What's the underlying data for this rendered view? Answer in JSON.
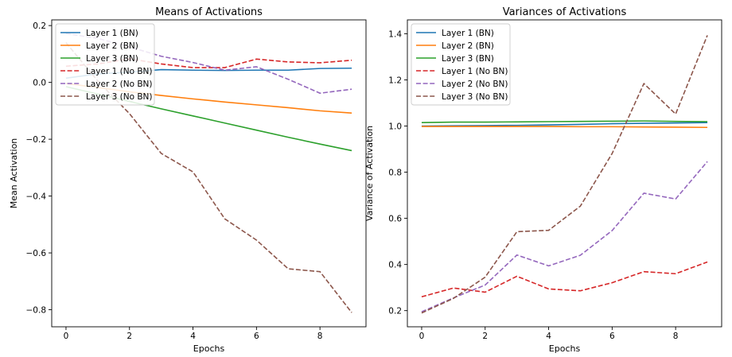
{
  "chart_data": [
    {
      "type": "line",
      "title": "Means of Activations",
      "xlabel": "Epochs",
      "ylabel": "Mean Activation",
      "xlim": [
        -0.45,
        9.45
      ],
      "ylim": [
        -0.86,
        0.22
      ],
      "xticks": [
        0,
        2,
        4,
        6,
        8
      ],
      "yticks": [
        -0.8,
        -0.6,
        -0.4,
        -0.2,
        0.0,
        0.2
      ],
      "ytick_labels": [
        "−0.8",
        "−0.6",
        "−0.4",
        "−0.2",
        "0.0",
        "0.2"
      ],
      "grid": false,
      "legend_position": "lower-left",
      "x": [
        0,
        1,
        2,
        3,
        4,
        5,
        6,
        7,
        8,
        9
      ],
      "series": [
        {
          "name": "Layer 1 (BN)",
          "color": "#1f77b4",
          "dashed": false,
          "values": [
            0.015,
            0.03,
            0.036,
            0.045,
            0.043,
            0.042,
            0.043,
            0.043,
            0.049,
            0.05
          ]
        },
        {
          "name": "Layer 2 (BN)",
          "color": "#ff7f0e",
          "dashed": false,
          "values": [
            -0.004,
            -0.018,
            -0.033,
            -0.046,
            -0.058,
            -0.069,
            -0.079,
            -0.089,
            -0.1,
            -0.108
          ]
        },
        {
          "name": "Layer 3 (BN)",
          "color": "#2ca02c",
          "dashed": false,
          "values": [
            -0.015,
            -0.041,
            -0.067,
            -0.093,
            -0.118,
            -0.143,
            -0.168,
            -0.193,
            -0.217,
            -0.24
          ]
        },
        {
          "name": "Layer 1 (No BN)",
          "color": "#d62728",
          "dashed": true,
          "values": [
            0.057,
            0.065,
            0.083,
            0.065,
            0.052,
            0.052,
            0.082,
            0.072,
            0.069,
            0.078
          ]
        },
        {
          "name": "Layer 2 (No BN)",
          "color": "#9467bd",
          "dashed": true,
          "values": [
            0.172,
            0.155,
            0.125,
            0.092,
            0.07,
            0.043,
            0.055,
            0.011,
            -0.038,
            -0.024
          ]
        },
        {
          "name": "Layer 3 (No BN)",
          "color": "#8c564b",
          "dashed": true,
          "values": [
            0.14,
            0.005,
            -0.11,
            -0.25,
            -0.315,
            -0.48,
            -0.555,
            -0.656,
            -0.666,
            -0.81
          ]
        }
      ]
    },
    {
      "type": "line",
      "title": "Variances of Activations",
      "xlabel": "Epochs",
      "ylabel": "Variance of Activation",
      "xlim": [
        -0.45,
        9.45
      ],
      "ylim": [
        0.13,
        1.46
      ],
      "xticks": [
        0,
        2,
        4,
        6,
        8
      ],
      "yticks": [
        0.2,
        0.4,
        0.6,
        0.8,
        1.0,
        1.2,
        1.4
      ],
      "ytick_labels": [
        "0.2",
        "0.4",
        "0.6",
        "0.8",
        "1.0",
        "1.2",
        "1.4"
      ],
      "grid": false,
      "legend_position": "upper-left",
      "x": [
        0,
        1,
        2,
        3,
        4,
        5,
        6,
        7,
        8,
        9
      ],
      "series": [
        {
          "name": "Layer 1 (BN)",
          "color": "#1f77b4",
          "dashed": false,
          "values": [
            1.0,
            1.001,
            1.002,
            1.003,
            1.005,
            1.007,
            1.01,
            1.012,
            1.013,
            1.015
          ]
        },
        {
          "name": "Layer 2 (BN)",
          "color": "#ff7f0e",
          "dashed": false,
          "values": [
            0.998,
            0.998,
            0.998,
            0.998,
            0.998,
            0.997,
            0.997,
            0.996,
            0.995,
            0.994
          ]
        },
        {
          "name": "Layer 3 (BN)",
          "color": "#2ca02c",
          "dashed": false,
          "values": [
            1.015,
            1.017,
            1.017,
            1.018,
            1.019,
            1.02,
            1.021,
            1.022,
            1.02,
            1.019
          ]
        },
        {
          "name": "Layer 1 (No BN)",
          "color": "#d62728",
          "dashed": true,
          "values": [
            0.26,
            0.298,
            0.28,
            0.349,
            0.294,
            0.286,
            0.321,
            0.369,
            0.36,
            0.411
          ]
        },
        {
          "name": "Layer 2 (No BN)",
          "color": "#9467bd",
          "dashed": true,
          "values": [
            0.195,
            0.255,
            0.311,
            0.441,
            0.394,
            0.44,
            0.547,
            0.709,
            0.684,
            0.846
          ]
        },
        {
          "name": "Layer 3 (No BN)",
          "color": "#8c564b",
          "dashed": true,
          "values": [
            0.19,
            0.253,
            0.345,
            0.542,
            0.548,
            0.653,
            0.881,
            1.184,
            1.052,
            1.393
          ]
        }
      ]
    }
  ]
}
